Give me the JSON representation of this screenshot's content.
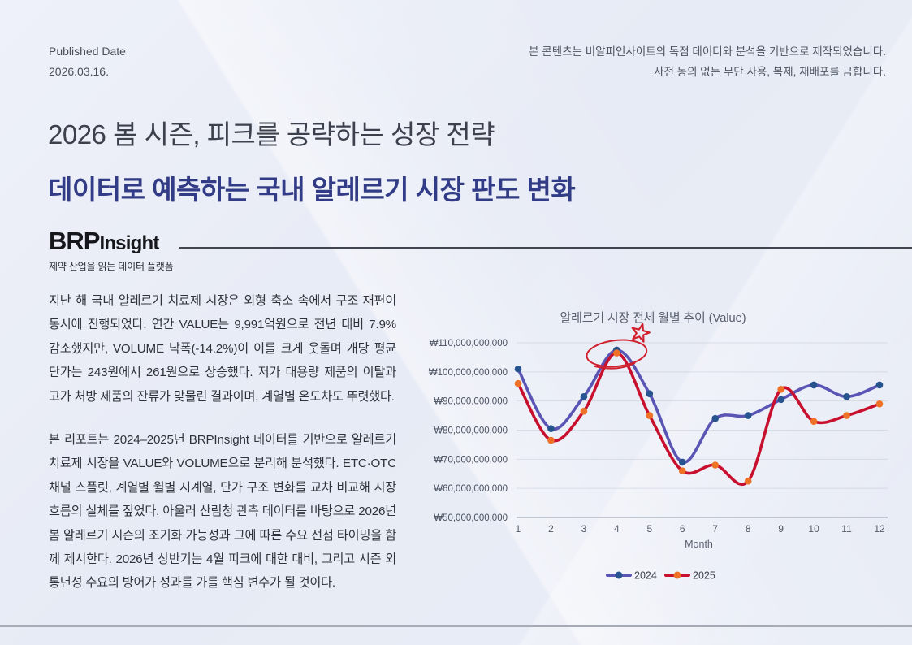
{
  "header": {
    "published_label": "Published Date",
    "published_date": "2026.03.16.",
    "notice_line1": "본 콘텐츠는 비알피인사이트의 독점 데이터와 분석을 기반으로 제작되었습니다.",
    "notice_line2": "사전 동의 없는 무단 사용, 복제, 재배포를 금합니다."
  },
  "title": {
    "subtitle": "2026 봄 시즌, 피크를 공략하는 성장 전략",
    "headline": "데이터로 예측하는 국내 알레르기 시장 판도 변화"
  },
  "brand": {
    "logo_primary": "BRP",
    "logo_secondary": "Insight",
    "tagline": "제약 산업을 읽는 데이터 플랫폼"
  },
  "article": {
    "paragraph1": "지난 해 국내 알레르기 치료제 시장은 외형 축소 속에서 구조 재편이 동시에 진행되었다. 연간 VALUE는 9,991억원으로 전년 대비 7.9% 감소했지만, VOLUME 낙폭(-14.2%)이 이를 크게 웃돌며 개당 평균 단가는 243원에서 261원으로 상승했다. 저가 대용량 제품의 이탈과 고가 처방 제품의 잔류가 맞물린 결과이며, 계열별 온도차도 뚜렷했다.",
    "paragraph2": "본 리포트는 2024–2025년 BRPInsight 데이터를 기반으로 알레르기 치료제 시장을 VALUE와 VOLUME으로 분리해 분석했다. ETC·OTC 채널 스플릿, 계열별 월별 시계열, 단가 구조 변화를 교차 비교해 시장 흐름의 실체를 짚었다. 아울러 산림청 관측 데이터를 바탕으로 2026년 봄 알레르기 시즌의 조기화 가능성과 그에 따른 수요 선점 타이밍을 함께 제시한다. 2026년 상반기는 4월 피크에 대한 대비, 그리고 시즌 외 통년성 수요의 방어가 성과를 가를 핵심 변수가 될 것이다."
  },
  "chart_data": {
    "type": "line",
    "title": "알레르기 시장 전체 월별 추이 (Value)",
    "xlabel": "Month",
    "x": [
      1,
      2,
      3,
      4,
      5,
      6,
      7,
      8,
      9,
      10,
      11,
      12
    ],
    "unit": "KRW",
    "series": [
      {
        "name": "2024",
        "line_color": "#5a55b4",
        "marker_color": "#27538f",
        "values_billion_krw": [
          101,
          80.5,
          91.5,
          107.5,
          92.5,
          69,
          84,
          85,
          90.5,
          95.5,
          91.5,
          95.5
        ]
      },
      {
        "name": "2025",
        "line_color": "#c8102e",
        "marker_color": "#ee7125",
        "values_billion_krw": [
          96,
          76.5,
          86.5,
          106.5,
          85,
          66,
          68,
          62.5,
          94,
          83,
          85,
          89
        ]
      }
    ],
    "y_ticks_billion_krw": [
      110,
      100,
      90,
      80,
      70,
      60,
      50
    ],
    "y_tick_labels": [
      "₩110,000,000,000",
      "₩100,000,000,000",
      "₩90,000,000,000",
      "₩80,000,000,000",
      "₩70,000,000,000",
      "₩60,000,000,000",
      "₩50,000,000,000"
    ],
    "ylim_billion_krw": [
      50,
      112
    ],
    "grid": true,
    "legend_position": "bottom",
    "annotation": {
      "target_month": 4,
      "shapes": [
        "hand-drawn-ellipse",
        "hand-drawn-star"
      ],
      "color": "#d0202e"
    }
  }
}
